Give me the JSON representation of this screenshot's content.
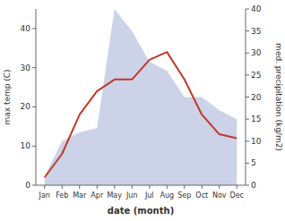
{
  "chart_data": {
    "type": "line",
    "xlabel": "date (month)",
    "ylabel": "max temp (C)",
    "y2label": "med. precipitation (kg/m2)",
    "categories": [
      "Jan",
      "Feb",
      "Mar",
      "Apr",
      "May",
      "Jun",
      "Jul",
      "Aug",
      "Sep",
      "Oct",
      "Nov",
      "Dec"
    ],
    "series": [
      {
        "type": "area",
        "axis": "y2",
        "color": "#aab4d8",
        "values": [
          2,
          10,
          12,
          13,
          40,
          35,
          28,
          26,
          20,
          20,
          17,
          15
        ]
      },
      {
        "type": "line",
        "color": "#c0392b",
        "values": [
          2,
          8,
          18,
          24,
          27,
          27,
          32,
          34,
          27,
          18,
          13,
          12
        ]
      }
    ],
    "ylim": [
      0,
      45
    ],
    "yticks": [
      0,
      10,
      20,
      30,
      40
    ],
    "y2lim": [
      0,
      40
    ],
    "y2ticks": [
      0,
      5,
      10,
      15,
      20,
      25,
      30,
      35,
      40
    ]
  }
}
